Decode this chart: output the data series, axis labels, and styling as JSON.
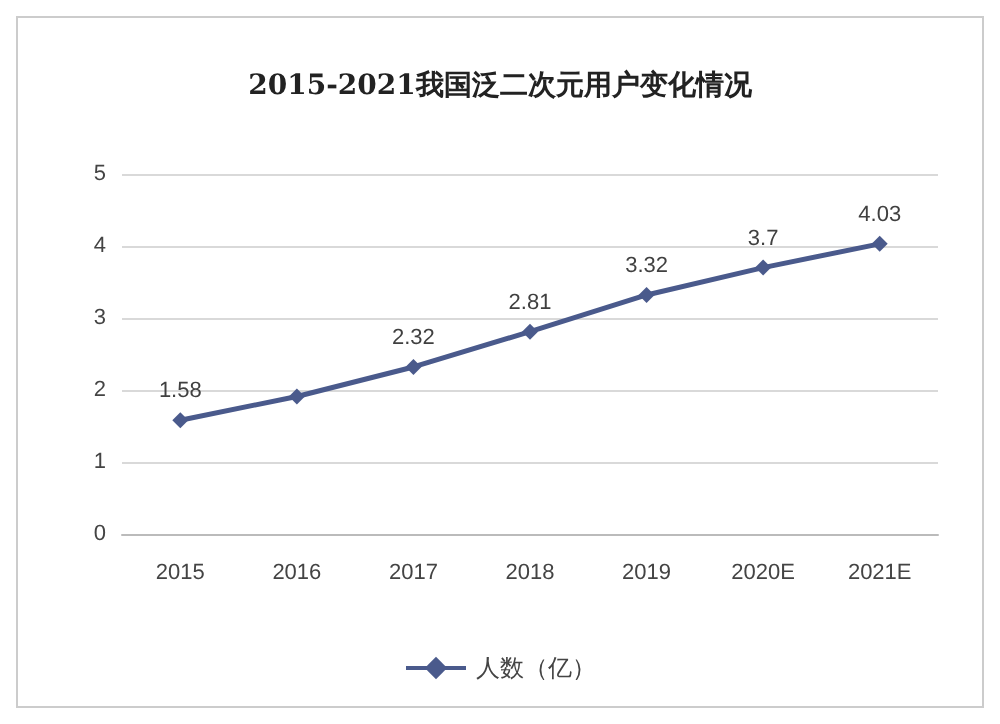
{
  "chart_data": {
    "type": "line",
    "title": "2015-2021我国泛二次元用户变化情况",
    "categories": [
      "2015",
      "2016",
      "2017",
      "2018",
      "2019",
      "2020E",
      "2021E"
    ],
    "series": [
      {
        "name": "人数（亿）",
        "color": "#4a5a8c",
        "values": [
          1.58,
          1.91,
          2.32,
          2.81,
          3.32,
          3.7,
          4.03
        ],
        "value_labels": [
          "1.58",
          null,
          "2.32",
          "2.81",
          "3.32",
          "3.7",
          "4.03"
        ]
      }
    ],
    "ylim": [
      0,
      5
    ],
    "yticks": [
      0,
      1,
      2,
      3,
      4,
      5
    ],
    "grid": "y",
    "legend": "bottom",
    "marker": "diamond",
    "line_style": "solid"
  }
}
